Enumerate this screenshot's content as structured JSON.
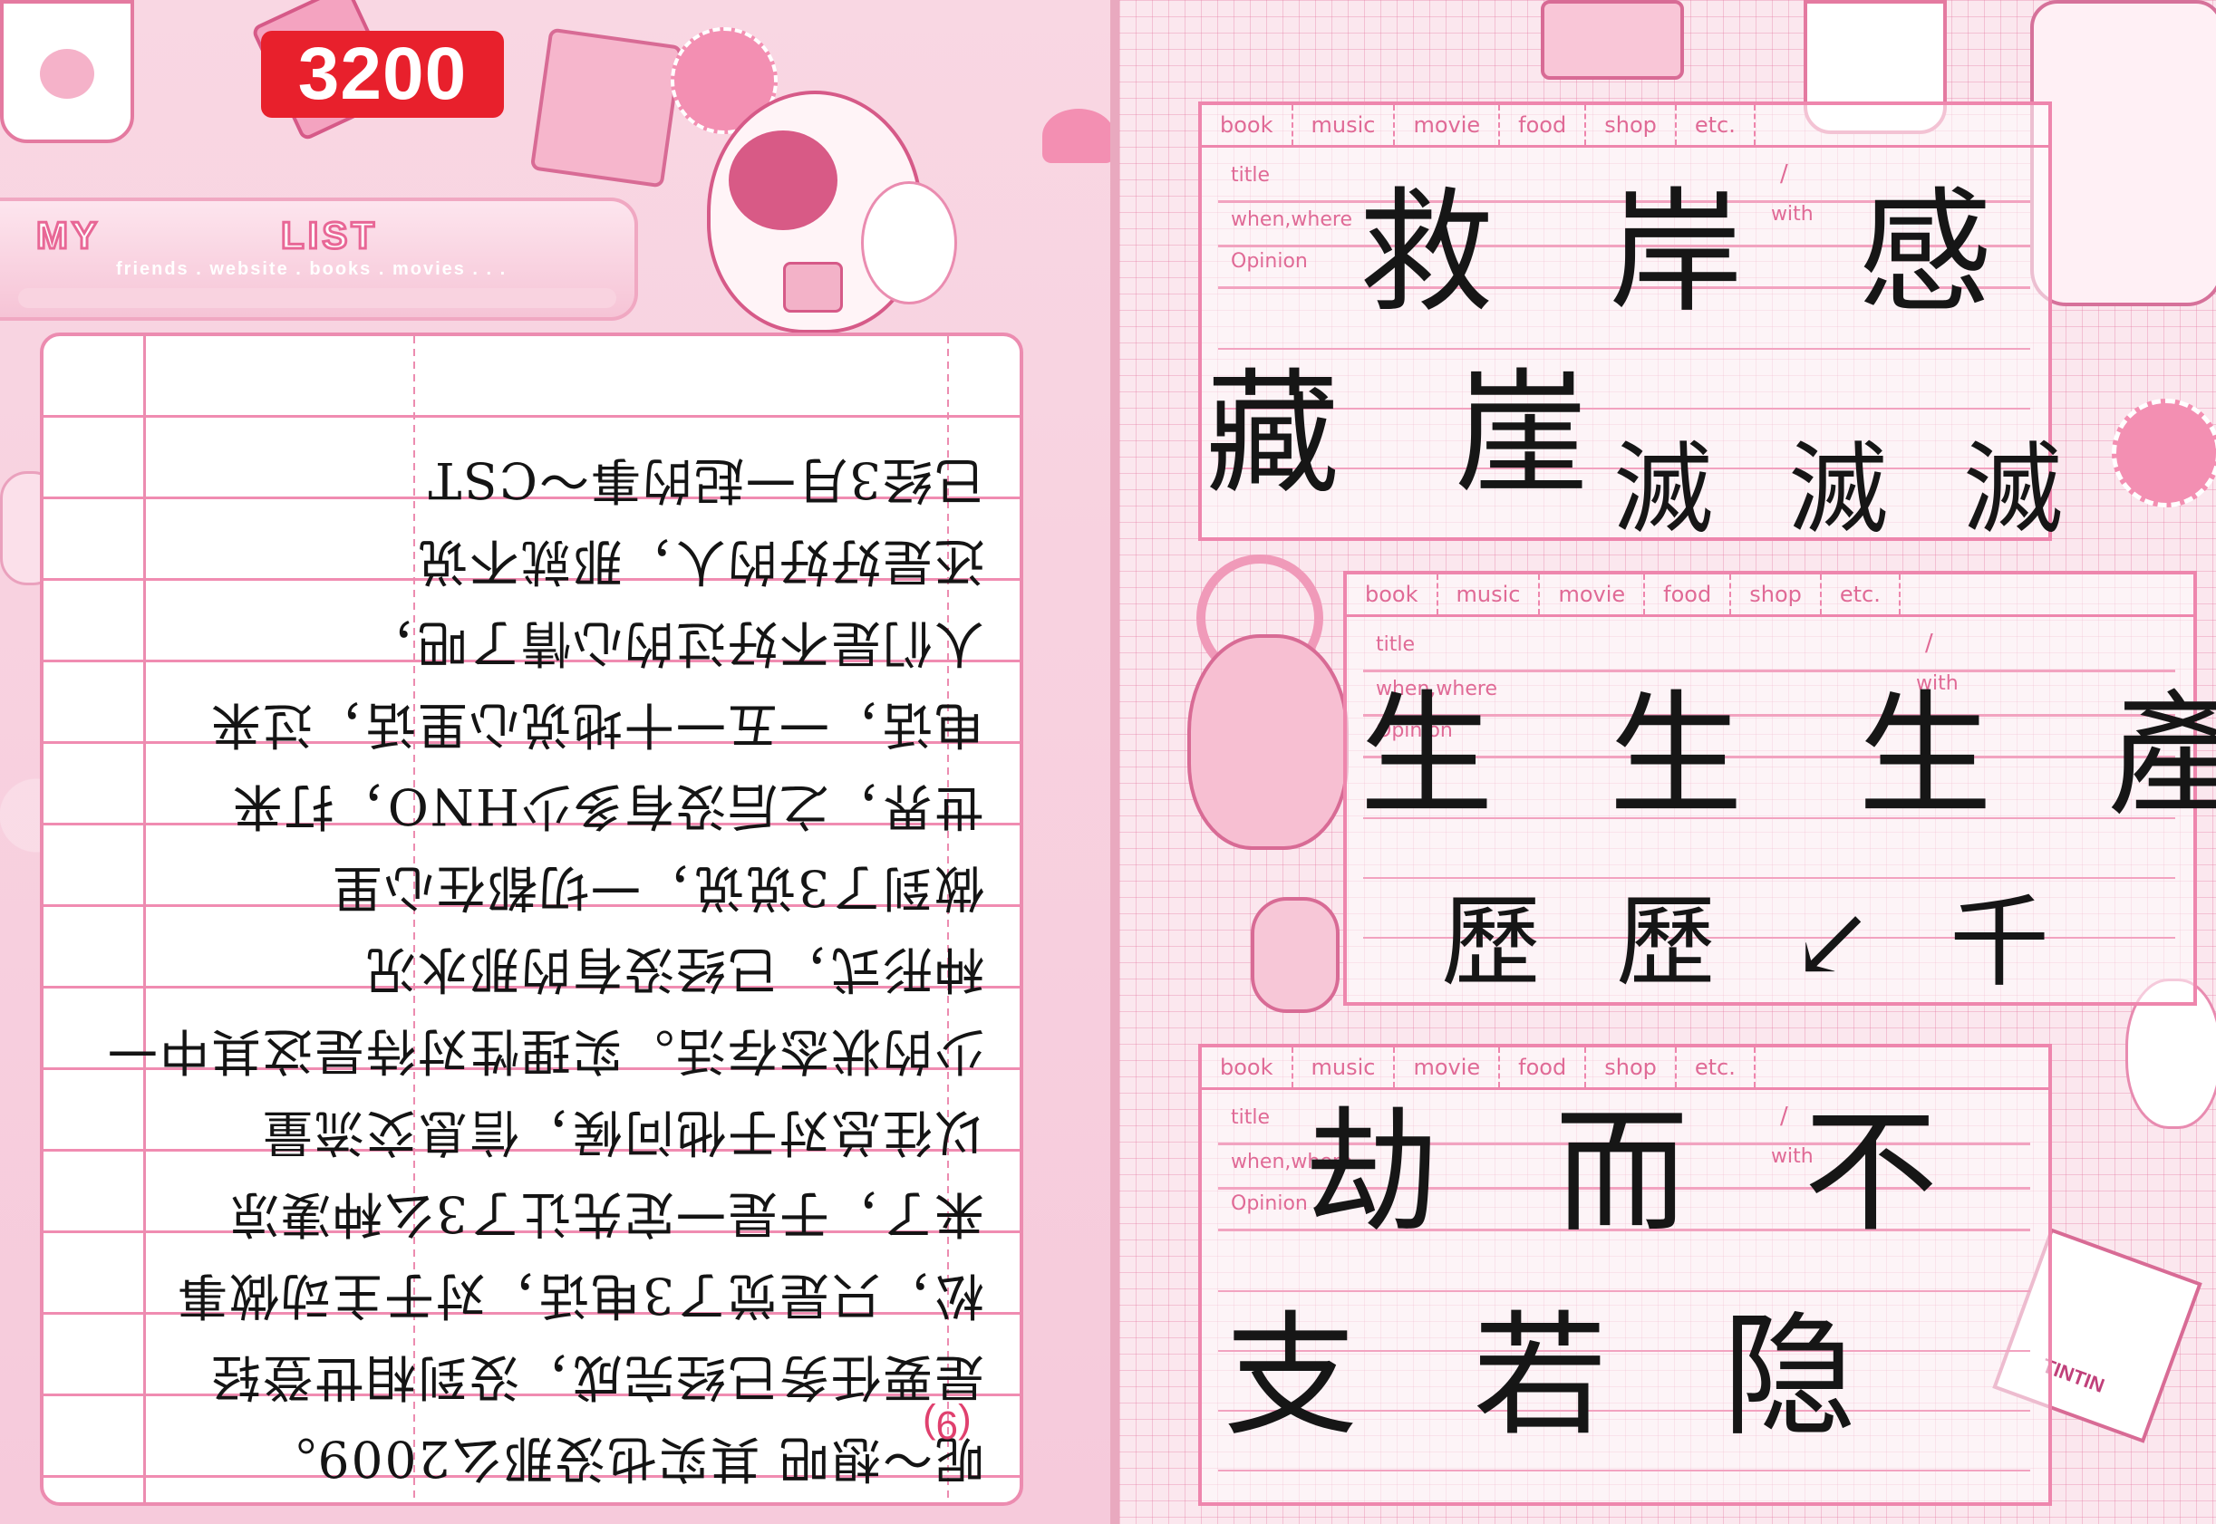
{
  "page_tag": "3200",
  "left_page": {
    "banner": {
      "title_left": "MY",
      "title_mid": "",
      "title_right": "LIST",
      "subtitle": "friends . website . books . movies . . ."
    },
    "page_number": "(9)",
    "letter_lines": [
      "呢～想吧 其实也没那么2009。",
      "是要任务已经完成，没到相世登轻",
      "松，只是觉了3电话，对于主动做事",
      "来了，于是一定先让了3么种凄凉",
      "以往总对于他问候，信息交流量",
      "少的状态存活。实理性对待是这其中一",
      "种形式，已经没有的那水况",
      "做到了3说说，一切都在心里",
      "世界，之后没有多少HNO，打来",
      "电话，一五一十地说心里话，过来",
      "人们是不好过的心情了吧，",
      "还是好好的人，那就不说",
      "已经3月一起的事～CST"
    ]
  },
  "right_page": {
    "form_tabs": [
      "book",
      "music",
      "movie",
      "food",
      "shop",
      "etc."
    ],
    "form_fields": {
      "title": "title",
      "title_separator": "/",
      "when_where": "when,where",
      "with": "with",
      "opinion": "Opinion"
    },
    "card1": {
      "line1": "救 岸 感",
      "line2": "藏 崖",
      "line3": "滅 滅 滅"
    },
    "card2": {
      "line1": "生 生 生 產",
      "line2": "歷 歷 ↙ 千"
    },
    "card3": {
      "line1": "劫 而 不",
      "line2": "支 若 隐"
    },
    "sticker_text": "TINTIN"
  }
}
